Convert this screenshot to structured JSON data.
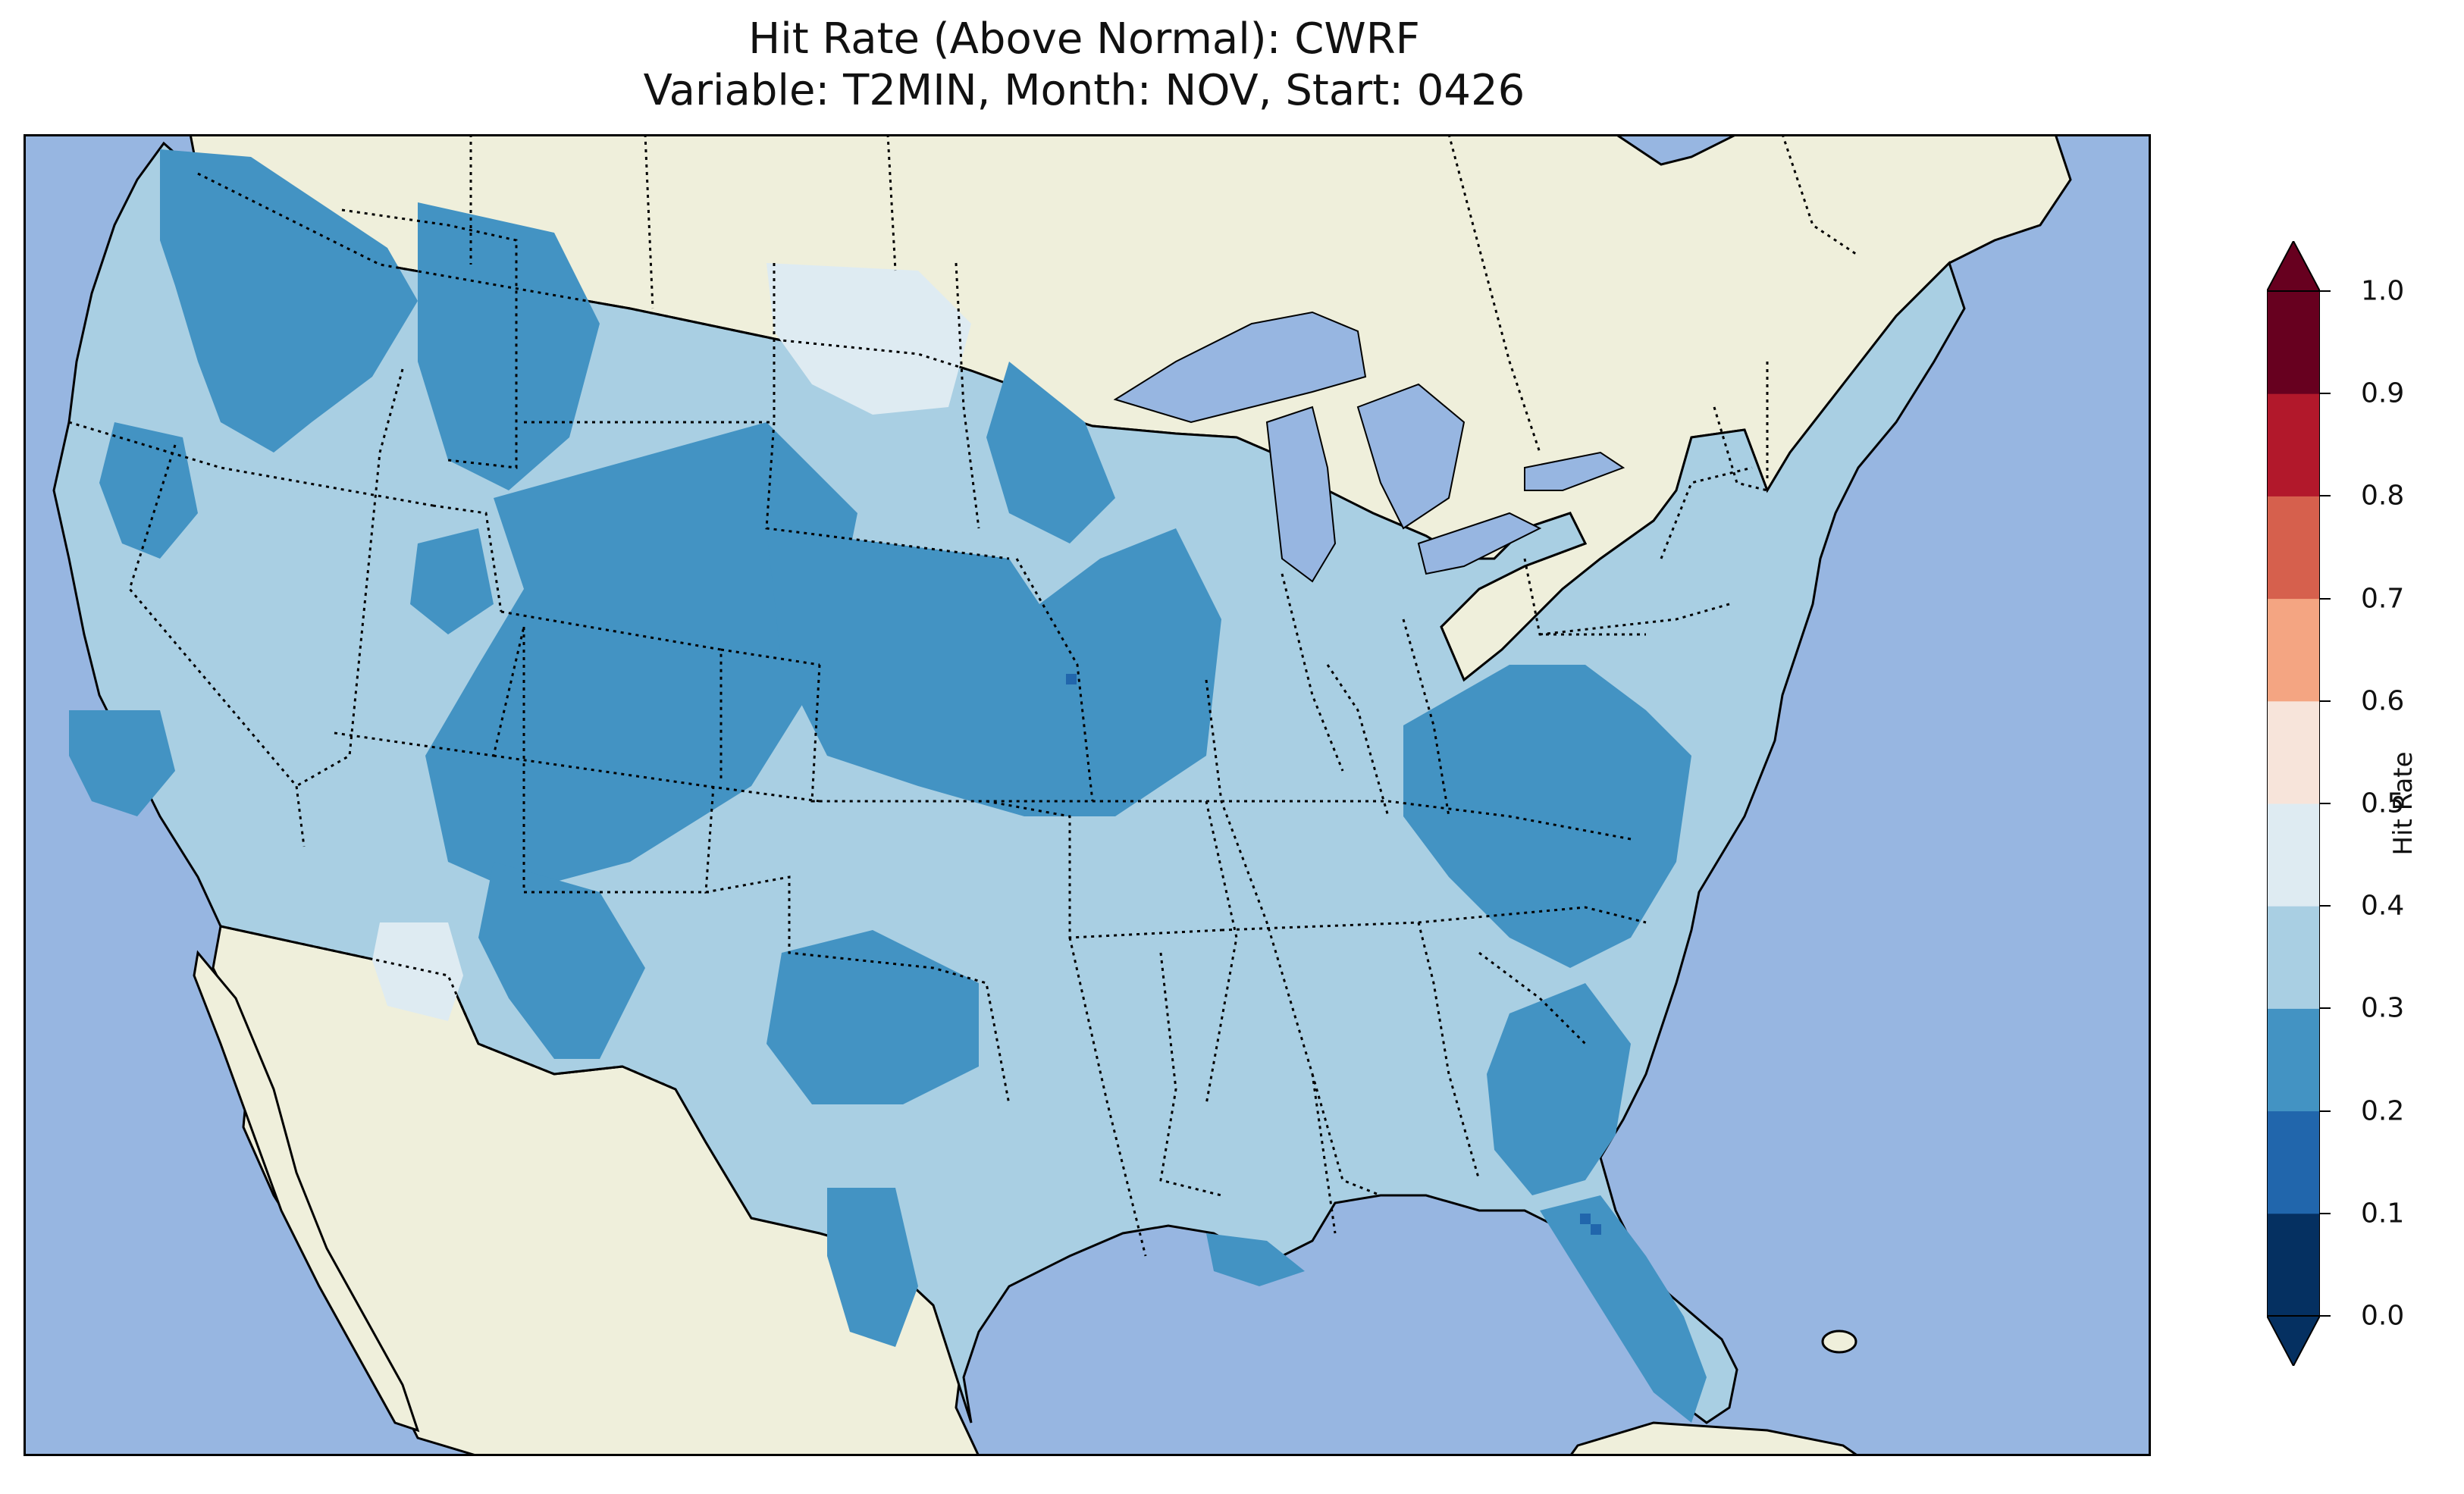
{
  "title": {
    "line1": "Hit Rate (Above Normal): CWRF",
    "line2": "Variable: T2MIN, Month: NOV, Start: 0426"
  },
  "colors": {
    "ocean": "#97b6e1",
    "land": "#efefdb",
    "lake": "#97b6e1",
    "coast": "#000000",
    "border": "#000000"
  },
  "colorbar": {
    "label": "Hit Rate",
    "ticks": [
      "0.0",
      "0.1",
      "0.2",
      "0.3",
      "0.4",
      "0.5",
      "0.6",
      "0.7",
      "0.8",
      "0.9",
      "1.0"
    ],
    "bins": [
      {
        "range": "0.0-0.1",
        "color": "#053061"
      },
      {
        "range": "0.1-0.2",
        "color": "#2166ac"
      },
      {
        "range": "0.2-0.3",
        "color": "#4393c3"
      },
      {
        "range": "0.3-0.4",
        "color": "#a9cfe3"
      },
      {
        "range": "0.4-0.5",
        "color": "#deebf2"
      },
      {
        "range": "0.5-0.6",
        "color": "#f7e4da"
      },
      {
        "range": "0.6-0.7",
        "color": "#f4a582"
      },
      {
        "range": "0.7-0.8",
        "color": "#d6604d"
      },
      {
        "range": "0.8-0.9",
        "color": "#b2182b"
      },
      {
        "range": "0.9-1.0",
        "color": "#67001f"
      }
    ],
    "extend_low_color": "#053061",
    "extend_high_color": "#67001f"
  },
  "regions": [
    {
      "name": "Pacific Northwest",
      "bin": "0.2-0.3"
    },
    {
      "name": "Northern Rockies",
      "bin": "0.2-0.3"
    },
    {
      "name": "Montana / North Dakota border",
      "bin": "0.4-0.5"
    },
    {
      "name": "Colorado / Wyoming / Utah",
      "bin": "0.2-0.3"
    },
    {
      "name": "Nebraska / Kansas / Iowa",
      "bin": "0.2-0.3"
    },
    {
      "name": "Southern Arizona",
      "bin": "0.4-0.5"
    },
    {
      "name": "West Texas / Oklahoma",
      "bin": "0.2-0.3"
    },
    {
      "name": "Appalachians / Ohio Valley",
      "bin": "0.2-0.3"
    },
    {
      "name": "Southeast coast / Florida",
      "bin": "0.2-0.3"
    },
    {
      "name": "Central Florida spots",
      "bin": "0.1-0.2"
    },
    {
      "name": "Remaining CONUS",
      "bin": "0.3-0.4"
    }
  ]
}
